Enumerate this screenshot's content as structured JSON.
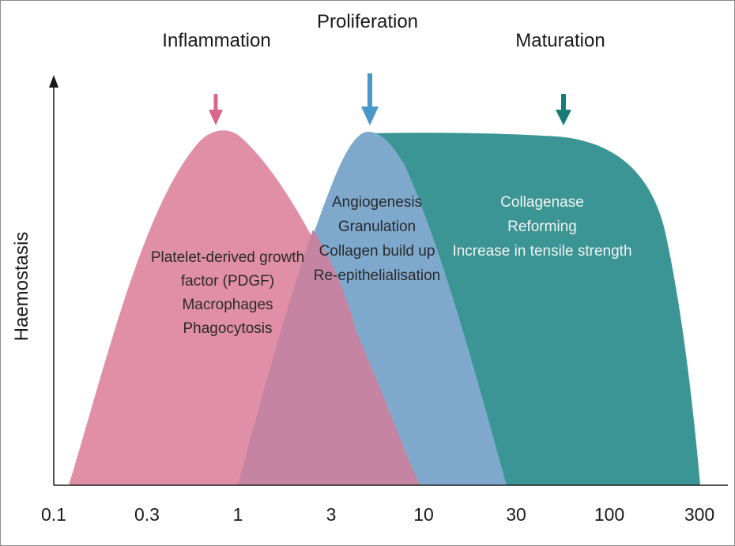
{
  "diagram": {
    "y_axis_label": "Haemostasis",
    "x_axis": {
      "scale": "log",
      "ticks": [
        "0.1",
        "0.3",
        "1",
        "3",
        "10",
        "30",
        "100",
        "300"
      ]
    },
    "phases": [
      {
        "title": "Inflammation",
        "color": "#E08FA7",
        "arrow_color": "#D9678D",
        "lines": [
          "Platelet-derived growth",
          "factor (PDGF)",
          "Macrophages",
          "Phagocytosis"
        ]
      },
      {
        "title": "Proliferation",
        "color": "#7EA8CC",
        "arrow_color": "#4A97C9",
        "lines": [
          "Angiogenesis",
          "Granulation",
          "Collagen build up",
          "Re-epithelialisation"
        ]
      },
      {
        "title": "Maturation",
        "color": "#3A9594",
        "arrow_color": "#167C78",
        "lines": [
          "Collagenase",
          "Reforming",
          "Increase in tensile strength"
        ]
      }
    ]
  }
}
